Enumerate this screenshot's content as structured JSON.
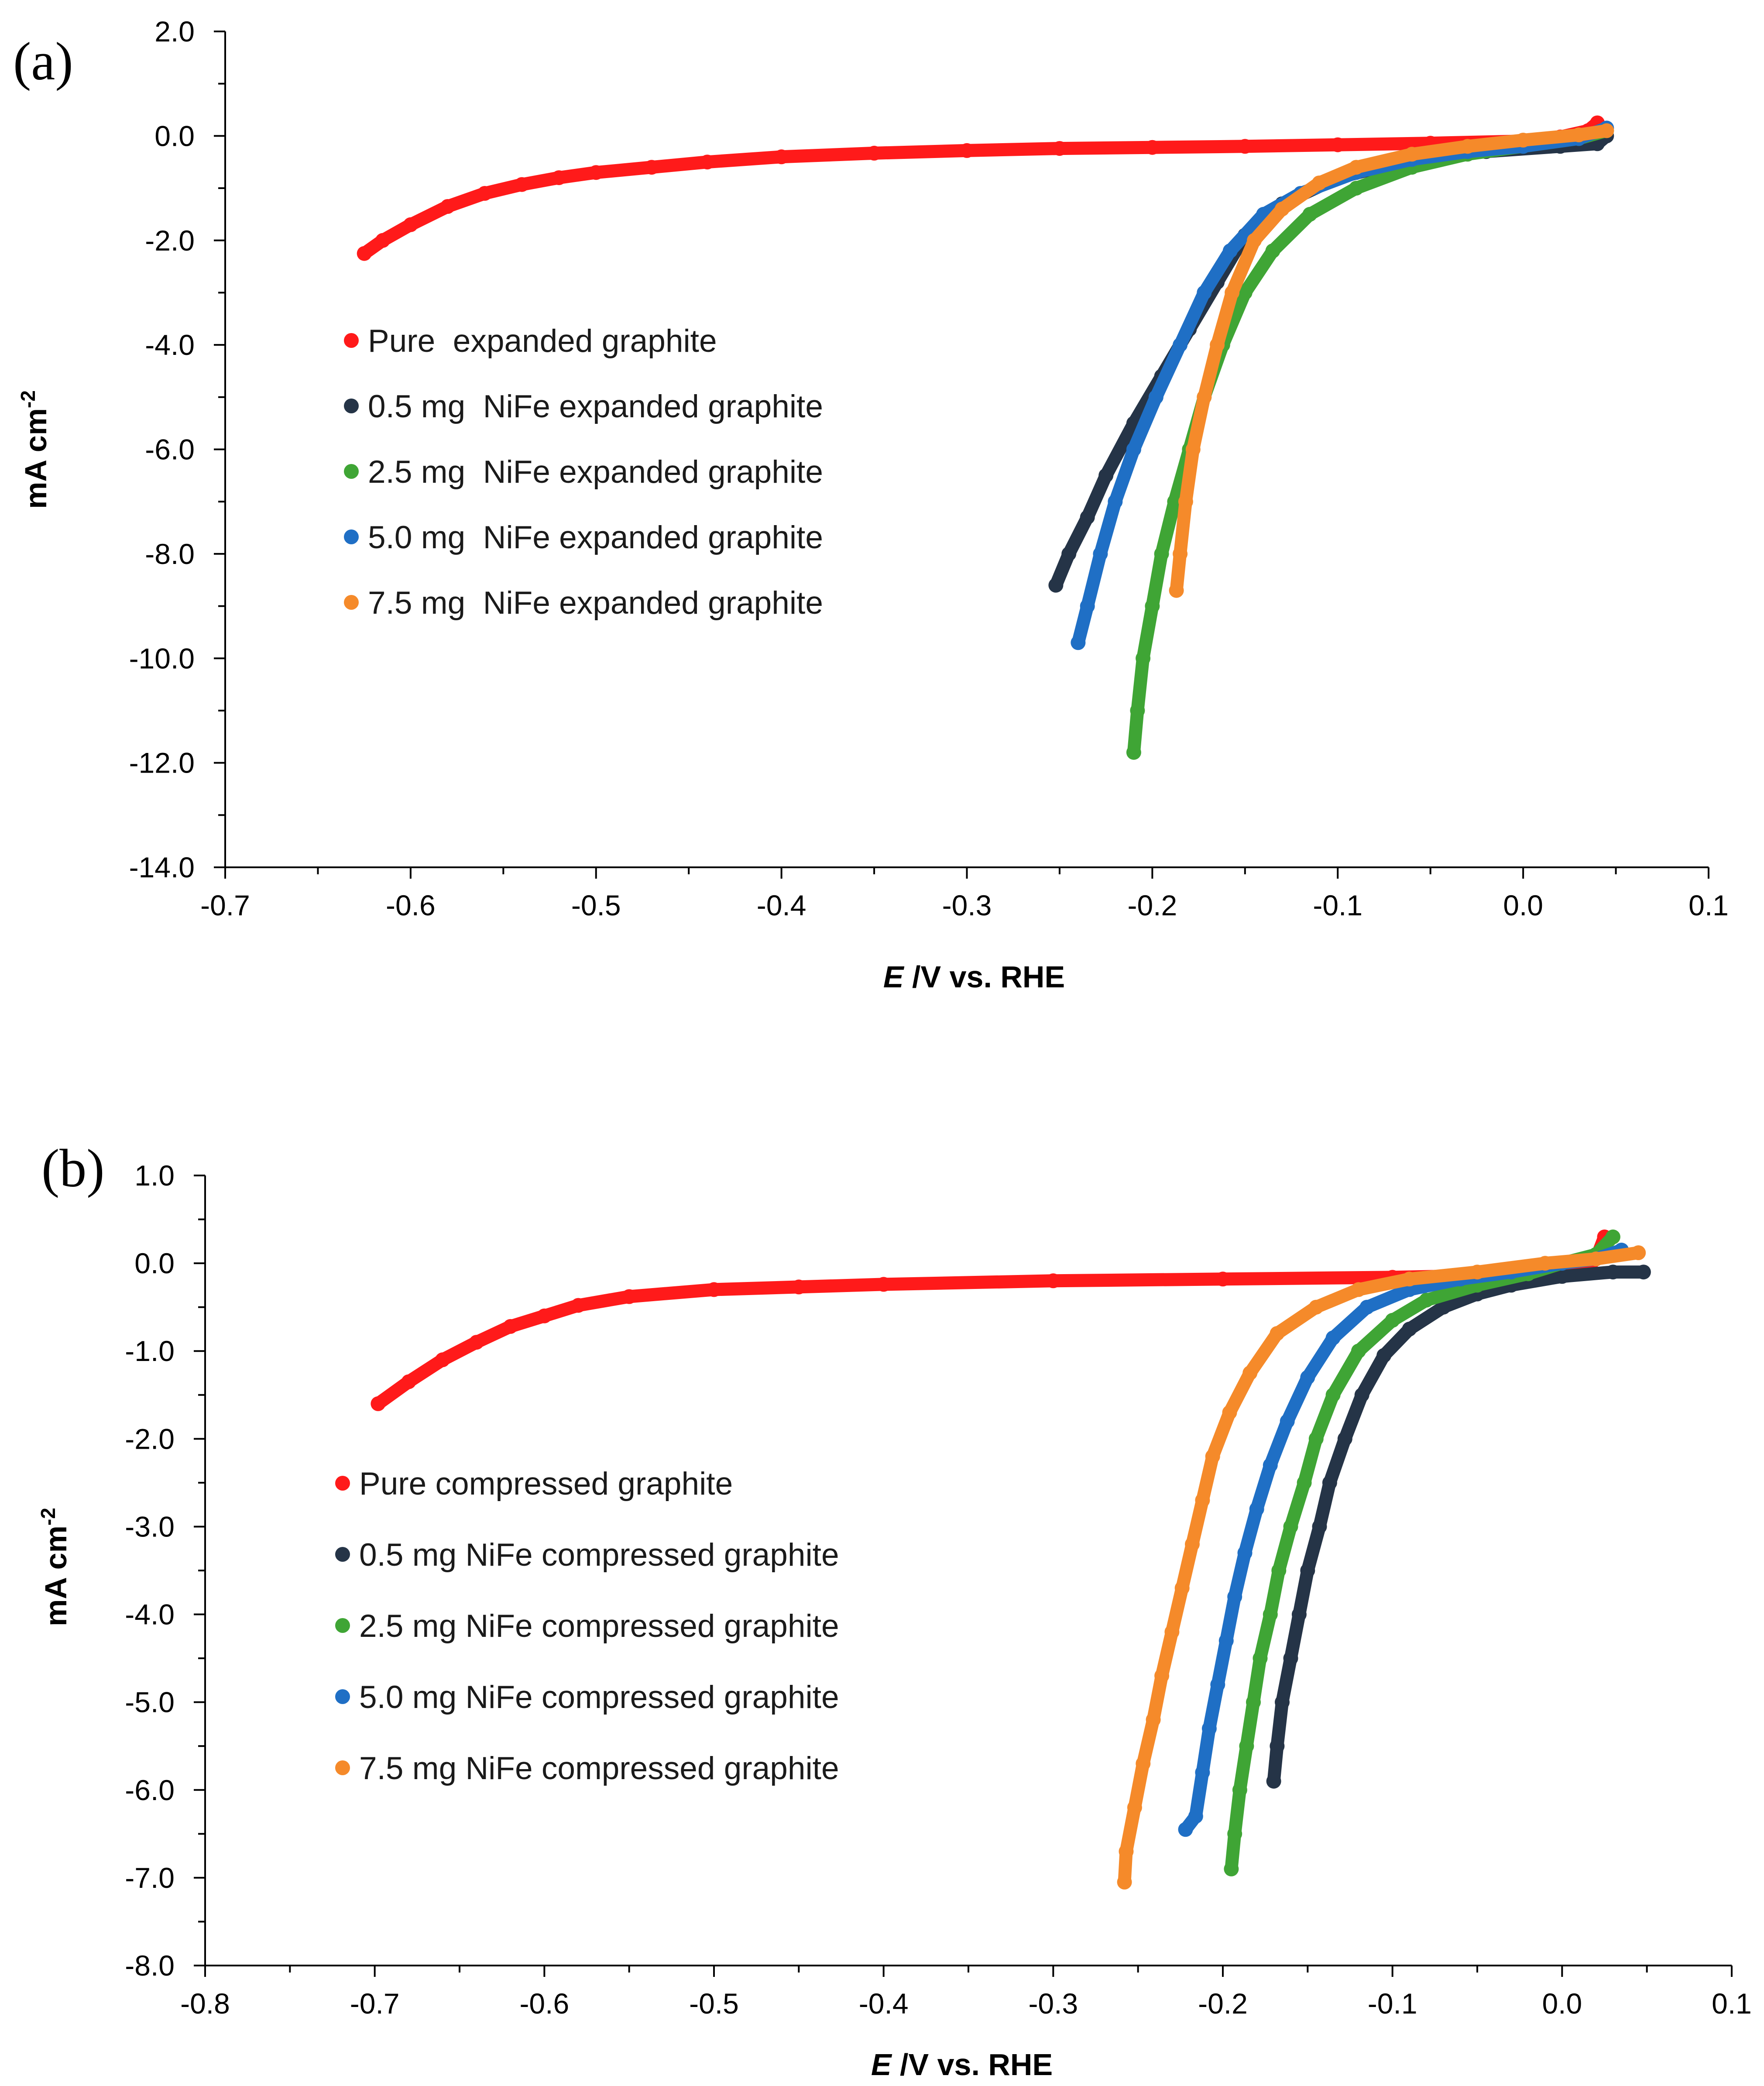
{
  "chart_data": [
    {
      "panel_label": "(a)",
      "type": "scatter",
      "xlabel_italic": "E",
      "xlabel_rest": " /V vs. RHE",
      "ylabel": "mA cm",
      "ylabel_sup": "-2",
      "xlim": [
        -0.7,
        0.1
      ],
      "ylim": [
        -14.0,
        2.0
      ],
      "x_ticks": [
        -0.7,
        -0.6,
        -0.5,
        -0.4,
        -0.3,
        -0.2,
        -0.1,
        0.0,
        0.1
      ],
      "x_tick_labels": [
        "-0.7",
        "-0.6",
        "-0.5",
        "-0.4",
        "-0.3",
        "-0.2",
        "-0.1",
        "0.0",
        "0.1"
      ],
      "y_ticks": [
        2.0,
        0.0,
        -2.0,
        -4.0,
        -6.0,
        -8.0,
        -10.0,
        -12.0,
        -14.0
      ],
      "y_tick_labels": [
        "2.0",
        "0.0",
        "-2.0",
        "-4.0",
        "-6.0",
        "-8.0",
        "-10.0",
        "-12.0",
        "-14.0"
      ],
      "grid": false,
      "legend_position": "left-middle",
      "series": [
        {
          "name": "Pure  expanded graphite",
          "color": "#ff1a1a",
          "points": [
            [
              -0.625,
              -2.25
            ],
            [
              -0.615,
              -2.0
            ],
            [
              -0.6,
              -1.7
            ],
            [
              -0.58,
              -1.35
            ],
            [
              -0.56,
              -1.1
            ],
            [
              -0.54,
              -0.93
            ],
            [
              -0.52,
              -0.8
            ],
            [
              -0.5,
              -0.7
            ],
            [
              -0.47,
              -0.6
            ],
            [
              -0.44,
              -0.5
            ],
            [
              -0.4,
              -0.4
            ],
            [
              -0.35,
              -0.33
            ],
            [
              -0.3,
              -0.28
            ],
            [
              -0.25,
              -0.24
            ],
            [
              -0.2,
              -0.22
            ],
            [
              -0.15,
              -0.2
            ],
            [
              -0.1,
              -0.17
            ],
            [
              -0.05,
              -0.14
            ],
            [
              0.0,
              -0.1
            ],
            [
              0.02,
              -0.02
            ],
            [
              0.035,
              0.1
            ],
            [
              0.04,
              0.25
            ]
          ]
        },
        {
          "name": "0.5 mg  NiFe expanded graphite",
          "color": "#253447",
          "points": [
            [
              -0.252,
              -8.6
            ],
            [
              -0.245,
              -8.0
            ],
            [
              -0.235,
              -7.3
            ],
            [
              -0.225,
              -6.5
            ],
            [
              -0.21,
              -5.5
            ],
            [
              -0.195,
              -4.6
            ],
            [
              -0.18,
              -3.7
            ],
            [
              -0.165,
              -2.8
            ],
            [
              -0.15,
              -1.9
            ],
            [
              -0.13,
              -1.3
            ],
            [
              -0.1,
              -0.8
            ],
            [
              -0.06,
              -0.45
            ],
            [
              -0.02,
              -0.3
            ],
            [
              0.02,
              -0.2
            ],
            [
              0.04,
              -0.15
            ],
            [
              0.045,
              0.0
            ]
          ]
        },
        {
          "name": "2.5 mg  NiFe expanded graphite",
          "color": "#3fa535",
          "points": [
            [
              -0.21,
              -11.8
            ],
            [
              -0.208,
              -11.0
            ],
            [
              -0.205,
              -10.0
            ],
            [
              -0.2,
              -9.0
            ],
            [
              -0.195,
              -8.0
            ],
            [
              -0.188,
              -7.0
            ],
            [
              -0.18,
              -6.0
            ],
            [
              -0.172,
              -5.0
            ],
            [
              -0.162,
              -4.0
            ],
            [
              -0.15,
              -3.0
            ],
            [
              -0.135,
              -2.2
            ],
            [
              -0.115,
              -1.5
            ],
            [
              -0.09,
              -1.0
            ],
            [
              -0.06,
              -0.6
            ],
            [
              -0.03,
              -0.35
            ],
            [
              0.0,
              -0.2
            ],
            [
              0.03,
              -0.05
            ],
            [
              0.045,
              0.1
            ]
          ]
        },
        {
          "name": "5.0 mg  NiFe expanded graphite",
          "color": "#1f6fc5",
          "points": [
            [
              -0.24,
              -9.7
            ],
            [
              -0.235,
              -9.0
            ],
            [
              -0.228,
              -8.0
            ],
            [
              -0.22,
              -7.0
            ],
            [
              -0.21,
              -6.0
            ],
            [
              -0.198,
              -5.0
            ],
            [
              -0.185,
              -4.0
            ],
            [
              -0.172,
              -3.0
            ],
            [
              -0.158,
              -2.2
            ],
            [
              -0.14,
              -1.5
            ],
            [
              -0.12,
              -1.1
            ],
            [
              -0.09,
              -0.7
            ],
            [
              -0.06,
              -0.45
            ],
            [
              -0.03,
              -0.3
            ],
            [
              0.0,
              -0.2
            ],
            [
              0.03,
              -0.05
            ],
            [
              0.045,
              0.15
            ]
          ]
        },
        {
          "name": "7.5 mg  NiFe expanded graphite",
          "color": "#f58a2a",
          "points": [
            [
              -0.187,
              -8.7
            ],
            [
              -0.185,
              -8.0
            ],
            [
              -0.182,
              -7.0
            ],
            [
              -0.178,
              -6.0
            ],
            [
              -0.172,
              -5.0
            ],
            [
              -0.165,
              -4.0
            ],
            [
              -0.157,
              -3.0
            ],
            [
              -0.145,
              -2.0
            ],
            [
              -0.13,
              -1.4
            ],
            [
              -0.11,
              -0.9
            ],
            [
              -0.09,
              -0.6
            ],
            [
              -0.06,
              -0.35
            ],
            [
              -0.03,
              -0.2
            ],
            [
              0.0,
              -0.08
            ],
            [
              0.03,
              0.02
            ],
            [
              0.045,
              0.1
            ]
          ]
        }
      ]
    },
    {
      "panel_label": "(b)",
      "type": "scatter",
      "xlabel_italic": "E",
      "xlabel_rest": " /V vs. RHE",
      "ylabel": "mA cm",
      "ylabel_sup": "-2",
      "xlim": [
        -0.8,
        0.1
      ],
      "ylim": [
        -8.0,
        1.0
      ],
      "x_ticks": [
        -0.8,
        -0.7,
        -0.6,
        -0.5,
        -0.4,
        -0.3,
        -0.2,
        -0.1,
        0.0,
        0.1
      ],
      "x_tick_labels": [
        "-0.8",
        "-0.7",
        "-0.6",
        "-0.5",
        "-0.4",
        "-0.3",
        "-0.2",
        "-0.1",
        "0.0",
        "0.1"
      ],
      "y_ticks": [
        1.0,
        0.0,
        -1.0,
        -2.0,
        -3.0,
        -4.0,
        -5.0,
        -6.0,
        -7.0,
        -8.0
      ],
      "y_tick_labels": [
        "1.0",
        "0.0",
        "-1.0",
        "-2.0",
        "-3.0",
        "-4.0",
        "-5.0",
        "-6.0",
        "-7.0",
        "-8.0"
      ],
      "grid": false,
      "legend_position": "left-middle",
      "series": [
        {
          "name": "Pure compressed graphite",
          "color": "#ff1a1a",
          "points": [
            [
              -0.698,
              -1.6
            ],
            [
              -0.68,
              -1.35
            ],
            [
              -0.66,
              -1.1
            ],
            [
              -0.64,
              -0.9
            ],
            [
              -0.62,
              -0.72
            ],
            [
              -0.6,
              -0.6
            ],
            [
              -0.58,
              -0.48
            ],
            [
              -0.55,
              -0.38
            ],
            [
              -0.5,
              -0.3
            ],
            [
              -0.45,
              -0.27
            ],
            [
              -0.4,
              -0.24
            ],
            [
              -0.3,
              -0.2
            ],
            [
              -0.2,
              -0.18
            ],
            [
              -0.1,
              -0.16
            ],
            [
              -0.05,
              -0.14
            ],
            [
              0.0,
              -0.1
            ],
            [
              0.015,
              -0.05
            ],
            [
              0.02,
              0.05
            ],
            [
              0.025,
              0.3
            ]
          ]
        },
        {
          "name": "0.5 mg NiFe compressed graphite",
          "color": "#253447",
          "points": [
            [
              -0.17,
              -5.9
            ],
            [
              -0.168,
              -5.5
            ],
            [
              -0.165,
              -5.0
            ],
            [
              -0.16,
              -4.5
            ],
            [
              -0.155,
              -4.0
            ],
            [
              -0.15,
              -3.5
            ],
            [
              -0.143,
              -3.0
            ],
            [
              -0.137,
              -2.5
            ],
            [
              -0.128,
              -2.0
            ],
            [
              -0.118,
              -1.5
            ],
            [
              -0.105,
              -1.05
            ],
            [
              -0.09,
              -0.75
            ],
            [
              -0.07,
              -0.5
            ],
            [
              -0.05,
              -0.35
            ],
            [
              -0.03,
              -0.25
            ],
            [
              0.0,
              -0.15
            ],
            [
              0.03,
              -0.1
            ],
            [
              0.048,
              -0.1
            ]
          ]
        },
        {
          "name": "2.5 mg NiFe compressed graphite",
          "color": "#3fa535",
          "points": [
            [
              -0.195,
              -6.9
            ],
            [
              -0.193,
              -6.5
            ],
            [
              -0.19,
              -6.0
            ],
            [
              -0.186,
              -5.5
            ],
            [
              -0.182,
              -5.0
            ],
            [
              -0.178,
              -4.5
            ],
            [
              -0.172,
              -4.0
            ],
            [
              -0.167,
              -3.5
            ],
            [
              -0.16,
              -3.0
            ],
            [
              -0.152,
              -2.5
            ],
            [
              -0.145,
              -2.0
            ],
            [
              -0.135,
              -1.5
            ],
            [
              -0.12,
              -1.0
            ],
            [
              -0.1,
              -0.65
            ],
            [
              -0.08,
              -0.42
            ],
            [
              -0.05,
              -0.25
            ],
            [
              -0.02,
              -0.12
            ],
            [
              0.0,
              0.0
            ],
            [
              0.02,
              0.1
            ],
            [
              0.03,
              0.3
            ]
          ]
        },
        {
          "name": "5.0 mg NiFe compressed graphite",
          "color": "#1f6fc5",
          "points": [
            [
              -0.222,
              -6.45
            ],
            [
              -0.216,
              -6.3
            ],
            [
              -0.212,
              -5.8
            ],
            [
              -0.208,
              -5.3
            ],
            [
              -0.203,
              -4.8
            ],
            [
              -0.198,
              -4.3
            ],
            [
              -0.193,
              -3.8
            ],
            [
              -0.187,
              -3.3
            ],
            [
              -0.18,
              -2.8
            ],
            [
              -0.172,
              -2.3
            ],
            [
              -0.162,
              -1.8
            ],
            [
              -0.15,
              -1.3
            ],
            [
              -0.135,
              -0.85
            ],
            [
              -0.115,
              -0.5
            ],
            [
              -0.09,
              -0.3
            ],
            [
              -0.06,
              -0.18
            ],
            [
              -0.03,
              -0.1
            ],
            [
              0.0,
              0.0
            ],
            [
              0.02,
              0.05
            ],
            [
              0.035,
              0.15
            ]
          ]
        },
        {
          "name": "7.5 mg NiFe compressed graphite",
          "color": "#f58a2a",
          "points": [
            [
              -0.258,
              -7.05
            ],
            [
              -0.257,
              -6.7
            ],
            [
              -0.252,
              -6.2
            ],
            [
              -0.247,
              -5.7
            ],
            [
              -0.241,
              -5.2
            ],
            [
              -0.236,
              -4.7
            ],
            [
              -0.23,
              -4.2
            ],
            [
              -0.224,
              -3.7
            ],
            [
              -0.218,
              -3.2
            ],
            [
              -0.212,
              -2.7
            ],
            [
              -0.206,
              -2.2
            ],
            [
              -0.196,
              -1.7
            ],
            [
              -0.184,
              -1.25
            ],
            [
              -0.168,
              -0.8
            ],
            [
              -0.145,
              -0.5
            ],
            [
              -0.12,
              -0.3
            ],
            [
              -0.09,
              -0.18
            ],
            [
              -0.05,
              -0.1
            ],
            [
              -0.01,
              0.0
            ],
            [
              0.02,
              0.05
            ],
            [
              0.045,
              0.12
            ]
          ]
        }
      ]
    }
  ]
}
